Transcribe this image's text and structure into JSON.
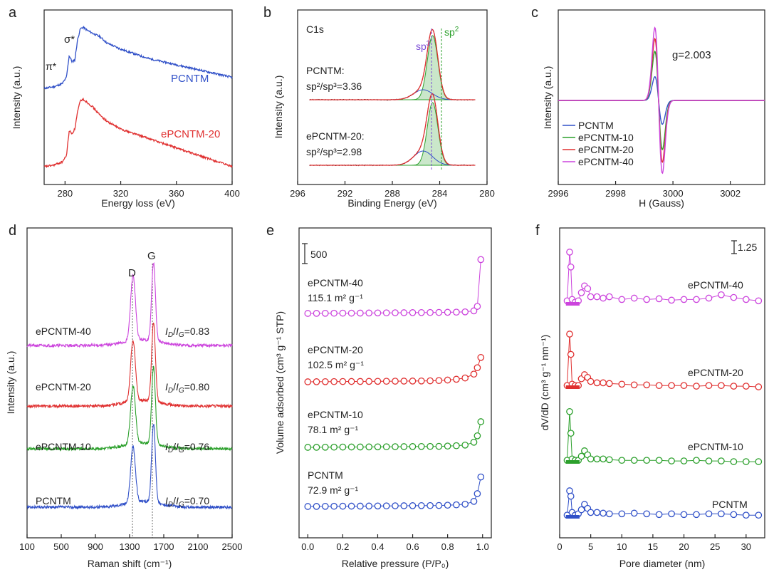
{
  "colors": {
    "blue": "#3050c8",
    "red": "#e03030",
    "green": "#2ca02c",
    "magenta": "#cc44dd",
    "purple": "#7b4bd6",
    "gray": "#777777"
  },
  "chart_data": [
    {
      "panel": "a",
      "type": "line",
      "xlabel": "Energy loss (eV)",
      "ylabel": "Intensity (a.u.)",
      "xlim": [
        265,
        400
      ],
      "xticks": [
        280,
        320,
        360,
        400
      ],
      "yticks": [],
      "series": [
        {
          "name": "PCNTM",
          "color": "#3050c8",
          "x": [
            265,
            272,
            278,
            281,
            283,
            285,
            287,
            289,
            291,
            293,
            296,
            300,
            305,
            310,
            320,
            330,
            340,
            350,
            360,
            370,
            380,
            390,
            400
          ],
          "y": [
            0.55,
            0.56,
            0.58,
            0.62,
            0.76,
            0.72,
            0.73,
            0.86,
            0.93,
            0.94,
            0.92,
            0.9,
            0.88,
            0.84,
            0.8,
            0.77,
            0.74,
            0.72,
            0.7,
            0.68,
            0.66,
            0.64,
            0.62
          ]
        },
        {
          "name": "ePCNTM-20",
          "color": "#e03030",
          "x": [
            265,
            272,
            278,
            281,
            283,
            285,
            287,
            289,
            291,
            293,
            296,
            300,
            305,
            310,
            320,
            330,
            340,
            350,
            360,
            370,
            380,
            390,
            400
          ],
          "y": [
            0.05,
            0.06,
            0.08,
            0.12,
            0.28,
            0.26,
            0.29,
            0.4,
            0.47,
            0.48,
            0.46,
            0.43,
            0.38,
            0.34,
            0.29,
            0.26,
            0.23,
            0.2,
            0.17,
            0.14,
            0.11,
            0.08,
            0.05
          ]
        }
      ],
      "annotations": [
        "π*",
        "σ*"
      ]
    },
    {
      "panel": "b",
      "type": "line",
      "xlabel": "Binding Energy (eV)",
      "ylabel": "Intensity (a.u.)",
      "xlim": [
        296,
        280
      ],
      "xticks": [
        296,
        292,
        288,
        284,
        280
      ],
      "inset_title": "C1s",
      "sp2_peak": 284.6,
      "sp3_peak": 285.4,
      "series": [
        {
          "name": "PCNTM",
          "label_line1": "PCNTM:",
          "label_line2": "sp²/sp³=3.36"
        },
        {
          "name": "ePCNTM-20",
          "label_line1": "ePCNTM-20:",
          "label_line2": "sp²/sp³=2.98"
        }
      ],
      "annotations": [
        "sp3",
        "sp2"
      ]
    },
    {
      "panel": "c",
      "type": "line",
      "xlabel": "H (Gauss)",
      "ylabel": "Intensity (a.u.)",
      "xlim": [
        2996,
        3003.2
      ],
      "xticks": [
        2996,
        2998,
        3000,
        3002
      ],
      "center": 2999.5,
      "annotation": "g=2.003",
      "series": [
        {
          "name": "PCNTM",
          "color": "#3050c8",
          "amplitude": 0.3
        },
        {
          "name": "ePCNTM-10",
          "color": "#2ca02c",
          "amplitude": 0.62
        },
        {
          "name": "ePCNTM-20",
          "color": "#e03030",
          "amplitude": 0.78
        },
        {
          "name": "ePCNTM-40",
          "color": "#cc44dd",
          "amplitude": 0.92
        }
      ]
    },
    {
      "panel": "d",
      "type": "line",
      "xlabel": "Raman shift (cm⁻¹)",
      "ylabel": "Intensity (a.u.)",
      "xlim": [
        100,
        2500
      ],
      "xticks": [
        100,
        500,
        900,
        1300,
        1700,
        2100,
        2500
      ],
      "peaks": {
        "D": 1340,
        "G": 1580
      },
      "series": [
        {
          "name": "ePCNTM-40",
          "color": "#cc44dd",
          "ratio": "=0.83"
        },
        {
          "name": "ePCNTM-20",
          "color": "#e03030",
          "ratio": "=0.80"
        },
        {
          "name": "ePCNTM-10",
          "color": "#2ca02c",
          "ratio": "=0.76"
        },
        {
          "name": "PCNTM",
          "color": "#3050c8",
          "ratio": "=0.70"
        }
      ],
      "annotations": [
        "D",
        "G"
      ]
    },
    {
      "panel": "e",
      "type": "scatter",
      "xlabel": "Relative pressure (P/P₀)",
      "ylabel": "Volume adsorbed (cm³ g⁻¹ STP)",
      "xlim": [
        -0.05,
        1.05
      ],
      "xticks": [
        0.0,
        0.2,
        0.4,
        0.6,
        0.8,
        1.0
      ],
      "scale_bar": "500",
      "series": [
        {
          "name": "ePCNTM-40",
          "area": "115.1 m² g⁻¹",
          "color": "#cc44dd",
          "x": [
            0.0,
            0.05,
            0.1,
            0.15,
            0.2,
            0.25,
            0.3,
            0.35,
            0.4,
            0.45,
            0.5,
            0.55,
            0.6,
            0.65,
            0.7,
            0.75,
            0.8,
            0.85,
            0.9,
            0.95,
            0.97,
            0.99
          ],
          "y": [
            0,
            0.5,
            1,
            1.5,
            2,
            2.5,
            3,
            3.5,
            4,
            4.5,
            5,
            5.5,
            6,
            6.5,
            7,
            8,
            9,
            10,
            12,
            20,
            55,
            420
          ]
        },
        {
          "name": "ePCNTM-20",
          "area": "102.5 m² g⁻¹",
          "color": "#e03030",
          "x": [
            0.0,
            0.05,
            0.1,
            0.15,
            0.2,
            0.25,
            0.3,
            0.35,
            0.4,
            0.45,
            0.5,
            0.55,
            0.6,
            0.65,
            0.7,
            0.75,
            0.8,
            0.85,
            0.9,
            0.95,
            0.97,
            0.99
          ],
          "y": [
            0,
            0.5,
            1,
            1.5,
            2,
            2.5,
            3,
            3.5,
            4,
            4.5,
            5,
            5.5,
            6,
            6.5,
            8,
            10,
            14,
            20,
            30,
            60,
            110,
            190
          ]
        },
        {
          "name": "ePCNTM-10",
          "area": "78.1 m² g⁻¹",
          "color": "#2ca02c",
          "x": [
            0.0,
            0.05,
            0.1,
            0.15,
            0.2,
            0.25,
            0.3,
            0.35,
            0.4,
            0.45,
            0.5,
            0.55,
            0.6,
            0.65,
            0.7,
            0.75,
            0.8,
            0.85,
            0.9,
            0.95,
            0.97,
            0.99
          ],
          "y": [
            0,
            0.5,
            1,
            1.5,
            2,
            2.5,
            3,
            3.5,
            4,
            4.5,
            5,
            5.5,
            6,
            6.5,
            7,
            8,
            10,
            13,
            18,
            40,
            90,
            200
          ]
        },
        {
          "name": "PCNTM",
          "area": "72.9 m² g⁻¹",
          "color": "#3050c8",
          "x": [
            0.0,
            0.05,
            0.1,
            0.15,
            0.2,
            0.25,
            0.3,
            0.35,
            0.4,
            0.45,
            0.5,
            0.55,
            0.6,
            0.65,
            0.7,
            0.75,
            0.8,
            0.85,
            0.9,
            0.95,
            0.97,
            0.99
          ],
          "y": [
            0,
            0.5,
            1,
            1.5,
            2,
            2.5,
            3,
            3.5,
            4,
            4.5,
            5,
            5.5,
            6,
            6.5,
            7,
            8,
            10,
            13,
            18,
            40,
            100,
            230
          ]
        }
      ]
    },
    {
      "panel": "f",
      "type": "scatter",
      "xlabel": "Pore diameter (nm)",
      "ylabel": "dV/dD (cm³ g⁻¹ nm⁻¹)",
      "xlim": [
        0,
        33
      ],
      "xticks": [
        0,
        5,
        10,
        15,
        20,
        25,
        30
      ],
      "scale_bar": "1.25",
      "series": [
        {
          "name": "ePCNTM-40",
          "color": "#cc44dd",
          "x": [
            1.2,
            1.6,
            1.8,
            2.0,
            2.5,
            3.0,
            3.5,
            4.0,
            4.5,
            5.0,
            6,
            7,
            8,
            10,
            12,
            14,
            16,
            18,
            20,
            22,
            24,
            26,
            28,
            30,
            32
          ],
          "y": [
            0.3,
            3.9,
            2.8,
            0.4,
            0.2,
            0.3,
            0.9,
            1.4,
            1.2,
            0.6,
            0.6,
            0.5,
            0.6,
            0.4,
            0.5,
            0.4,
            0.45,
            0.35,
            0.4,
            0.4,
            0.5,
            0.75,
            0.55,
            0.4,
            0.3
          ]
        },
        {
          "name": "ePCNTM-20",
          "color": "#e03030",
          "x": [
            1.2,
            1.6,
            1.8,
            2.0,
            2.5,
            3.0,
            3.5,
            4.0,
            4.5,
            5.0,
            6,
            7,
            8,
            10,
            12,
            14,
            16,
            18,
            20,
            22,
            24,
            26,
            28,
            30,
            32
          ],
          "y": [
            0.2,
            4.0,
            2.5,
            0.3,
            0.2,
            0.2,
            0.7,
            1.0,
            0.8,
            0.5,
            0.4,
            0.4,
            0.35,
            0.3,
            0.25,
            0.25,
            0.2,
            0.2,
            0.2,
            0.15,
            0.2,
            0.2,
            0.15,
            0.15,
            0.1
          ]
        },
        {
          "name": "ePCNTM-10",
          "color": "#2ca02c",
          "x": [
            1.2,
            1.6,
            1.8,
            2.0,
            2.5,
            3.0,
            3.5,
            4.0,
            4.5,
            5.0,
            6,
            7,
            8,
            10,
            12,
            14,
            16,
            18,
            20,
            22,
            24,
            26,
            28,
            30,
            32
          ],
          "y": [
            0.2,
            3.8,
            2.2,
            0.3,
            0.2,
            0.2,
            0.5,
            0.9,
            0.6,
            0.3,
            0.3,
            0.3,
            0.25,
            0.2,
            0.2,
            0.2,
            0.2,
            0.15,
            0.15,
            0.2,
            0.15,
            0.15,
            0.1,
            0.1,
            0.1
          ]
        },
        {
          "name": "PCNTM",
          "color": "#3050c8",
          "x": [
            1.2,
            1.6,
            1.8,
            2.0,
            2.5,
            3.0,
            3.5,
            4.0,
            4.5,
            5.0,
            6,
            7,
            8,
            10,
            12,
            14,
            16,
            18,
            20,
            22,
            24,
            26,
            28,
            30,
            32
          ],
          "y": [
            0.2,
            2.0,
            1.6,
            0.4,
            0.2,
            0.3,
            0.6,
            1.0,
            0.7,
            0.4,
            0.4,
            0.35,
            0.3,
            0.3,
            0.35,
            0.3,
            0.25,
            0.3,
            0.25,
            0.25,
            0.3,
            0.3,
            0.25,
            0.2,
            0.2
          ]
        }
      ]
    }
  ],
  "panel_letters": [
    "a",
    "b",
    "c",
    "d",
    "e",
    "f"
  ]
}
